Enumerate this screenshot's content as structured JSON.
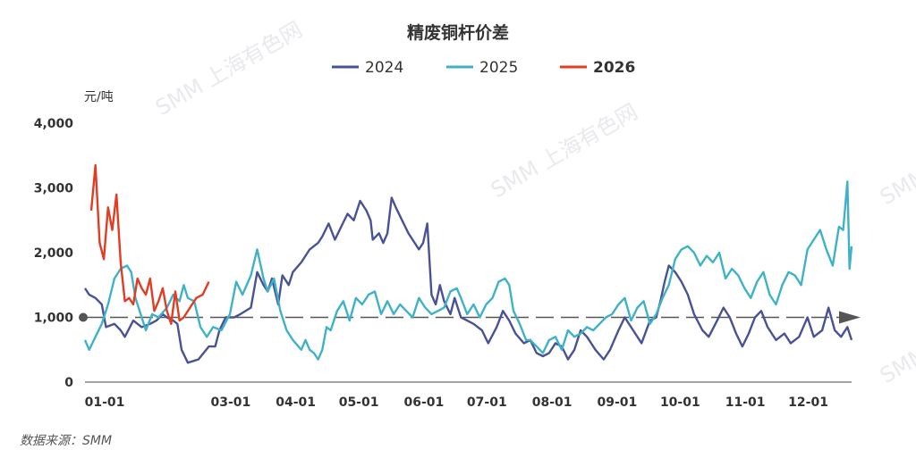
{
  "chart_data": {
    "type": "line",
    "title": "精废铜杆价差",
    "unit_label": "元/吨",
    "source": "数据来源：SMM",
    "watermark": "SMM 上海有色网",
    "ylim": [
      0,
      4000
    ],
    "yticks": [
      "0",
      "1,000",
      "2,000",
      "3,000",
      "4,000"
    ],
    "reference_value": 1000,
    "x_axis": "day of year (1-366)",
    "xticks": [
      {
        "label": "01-01",
        "day": 1
      },
      {
        "label": "03-01",
        "day": 61
      },
      {
        "label": "04-01",
        "day": 92
      },
      {
        "label": "05-01",
        "day": 122
      },
      {
        "label": "06-01",
        "day": 153
      },
      {
        "label": "07-01",
        "day": 183
      },
      {
        "label": "08-01",
        "day": 214
      },
      {
        "label": "09-01",
        "day": 245
      },
      {
        "label": "10-01",
        "day": 275
      },
      {
        "label": "11-01",
        "day": 306
      },
      {
        "label": "12-01",
        "day": 336
      }
    ],
    "series": [
      {
        "name": "2024",
        "color": "#4a5296",
        "bold_legend": false,
        "points": [
          [
            1,
            1450
          ],
          [
            3,
            1350
          ],
          [
            6,
            1300
          ],
          [
            9,
            1200
          ],
          [
            11,
            850
          ],
          [
            15,
            900
          ],
          [
            18,
            800
          ],
          [
            20,
            700
          ],
          [
            24,
            950
          ],
          [
            28,
            850
          ],
          [
            32,
            900
          ],
          [
            35,
            950
          ],
          [
            38,
            1050
          ],
          [
            40,
            1000
          ],
          [
            43,
            950
          ],
          [
            45,
            900
          ],
          [
            47,
            500
          ],
          [
            50,
            300
          ],
          [
            55,
            350
          ],
          [
            60,
            550
          ],
          [
            63,
            550
          ],
          [
            65,
            800
          ],
          [
            68,
            1000
          ],
          [
            72,
            1000
          ],
          [
            75,
            1050
          ],
          [
            80,
            1150
          ],
          [
            83,
            1700
          ],
          [
            86,
            1500
          ],
          [
            88,
            1400
          ],
          [
            90,
            1600
          ],
          [
            93,
            1200
          ],
          [
            95,
            1650
          ],
          [
            98,
            1500
          ],
          [
            100,
            1700
          ],
          [
            104,
            1850
          ],
          [
            108,
            2050
          ],
          [
            112,
            2150
          ],
          [
            114,
            2250
          ],
          [
            117,
            2450
          ],
          [
            120,
            2200
          ],
          [
            123,
            2400
          ],
          [
            126,
            2600
          ],
          [
            129,
            2500
          ],
          [
            132,
            2800
          ],
          [
            135,
            2650
          ],
          [
            137,
            2500
          ],
          [
            138,
            2200
          ],
          [
            141,
            2300
          ],
          [
            143,
            2150
          ],
          [
            145,
            2300
          ],
          [
            147,
            2850
          ],
          [
            149,
            2700
          ],
          [
            152,
            2500
          ],
          [
            155,
            2300
          ],
          [
            158,
            2150
          ],
          [
            160,
            2050
          ],
          [
            162,
            2150
          ],
          [
            164,
            2450
          ],
          [
            166,
            1350
          ],
          [
            168,
            1200
          ],
          [
            170,
            1500
          ],
          [
            172,
            1250
          ],
          [
            175,
            1050
          ],
          [
            177,
            1300
          ],
          [
            180,
            1000
          ],
          [
            183,
            950
          ],
          [
            186,
            900
          ],
          [
            190,
            800
          ],
          [
            193,
            600
          ],
          [
            197,
            850
          ],
          [
            200,
            1100
          ],
          [
            203,
            950
          ],
          [
            206,
            750
          ],
          [
            210,
            600
          ],
          [
            213,
            650
          ],
          [
            216,
            450
          ],
          [
            219,
            400
          ],
          [
            222,
            450
          ],
          [
            225,
            600
          ],
          [
            228,
            550
          ],
          [
            231,
            350
          ],
          [
            234,
            500
          ],
          [
            237,
            800
          ],
          [
            240,
            700
          ],
          [
            244,
            500
          ],
          [
            248,
            350
          ],
          [
            251,
            500
          ],
          [
            255,
            800
          ],
          [
            258,
            1000
          ],
          [
            262,
            800
          ],
          [
            266,
            600
          ],
          [
            270,
            950
          ],
          [
            273,
            1000
          ],
          [
            275,
            1250
          ],
          [
            277,
            1550
          ],
          [
            279,
            1800
          ],
          [
            282,
            1700
          ],
          [
            285,
            1550
          ],
          [
            288,
            1350
          ],
          [
            291,
            1050
          ],
          [
            295,
            800
          ],
          [
            298,
            700
          ],
          [
            302,
            950
          ],
          [
            305,
            1150
          ],
          [
            308,
            1000
          ],
          [
            311,
            750
          ],
          [
            314,
            550
          ],
          [
            317,
            750
          ],
          [
            320,
            1000
          ],
          [
            323,
            1100
          ],
          [
            326,
            850
          ],
          [
            330,
            650
          ],
          [
            334,
            750
          ],
          [
            337,
            600
          ],
          [
            341,
            700
          ],
          [
            345,
            1000
          ],
          [
            348,
            700
          ],
          [
            352,
            800
          ],
          [
            355,
            1150
          ],
          [
            358,
            800
          ],
          [
            361,
            700
          ],
          [
            364,
            850
          ],
          [
            366,
            650
          ]
        ]
      },
      {
        "name": "2025",
        "color": "#3fb2c8",
        "bold_legend": false,
        "points": [
          [
            1,
            650
          ],
          [
            3,
            500
          ],
          [
            6,
            700
          ],
          [
            9,
            900
          ],
          [
            12,
            1200
          ],
          [
            15,
            1600
          ],
          [
            18,
            1750
          ],
          [
            21,
            1800
          ],
          [
            23,
            1700
          ],
          [
            25,
            1300
          ],
          [
            28,
            1000
          ],
          [
            30,
            800
          ],
          [
            33,
            1050
          ],
          [
            36,
            1000
          ],
          [
            40,
            1150
          ],
          [
            43,
            1350
          ],
          [
            46,
            1250
          ],
          [
            48,
            1500
          ],
          [
            50,
            1300
          ],
          [
            53,
            1250
          ],
          [
            56,
            850
          ],
          [
            59,
            700
          ],
          [
            62,
            850
          ],
          [
            66,
            800
          ],
          [
            70,
            1050
          ],
          [
            73,
            1550
          ],
          [
            76,
            1350
          ],
          [
            80,
            1650
          ],
          [
            83,
            2050
          ],
          [
            86,
            1600
          ],
          [
            88,
            1400
          ],
          [
            91,
            1600
          ],
          [
            94,
            1100
          ],
          [
            97,
            800
          ],
          [
            100,
            650
          ],
          [
            104,
            500
          ],
          [
            106,
            650
          ],
          [
            108,
            500
          ],
          [
            110,
            450
          ],
          [
            112,
            350
          ],
          [
            114,
            500
          ],
          [
            116,
            850
          ],
          [
            118,
            800
          ],
          [
            121,
            1100
          ],
          [
            124,
            1250
          ],
          [
            127,
            950
          ],
          [
            130,
            1300
          ],
          [
            133,
            1200
          ],
          [
            136,
            1350
          ],
          [
            139,
            1400
          ],
          [
            142,
            1050
          ],
          [
            145,
            1250
          ],
          [
            148,
            1050
          ],
          [
            151,
            1200
          ],
          [
            154,
            1100
          ],
          [
            157,
            1000
          ],
          [
            160,
            1300
          ],
          [
            163,
            1150
          ],
          [
            166,
            1050
          ],
          [
            169,
            1100
          ],
          [
            172,
            1150
          ],
          [
            175,
            1400
          ],
          [
            178,
            1450
          ],
          [
            180,
            1300
          ],
          [
            183,
            1050
          ],
          [
            186,
            1200
          ],
          [
            189,
            1000
          ],
          [
            192,
            1200
          ],
          [
            195,
            1300
          ],
          [
            198,
            1550
          ],
          [
            201,
            1600
          ],
          [
            203,
            1500
          ],
          [
            205,
            1100
          ],
          [
            208,
            900
          ],
          [
            211,
            650
          ],
          [
            213,
            650
          ],
          [
            216,
            550
          ],
          [
            219,
            450
          ],
          [
            222,
            650
          ],
          [
            225,
            700
          ],
          [
            228,
            500
          ],
          [
            231,
            800
          ],
          [
            234,
            700
          ],
          [
            237,
            750
          ],
          [
            240,
            850
          ],
          [
            243,
            800
          ],
          [
            246,
            900
          ],
          [
            249,
            1000
          ],
          [
            252,
            1050
          ],
          [
            255,
            1200
          ],
          [
            258,
            1300
          ],
          [
            261,
            950
          ],
          [
            264,
            1150
          ],
          [
            267,
            1250
          ],
          [
            270,
            900
          ],
          [
            273,
            1050
          ],
          [
            276,
            1300
          ],
          [
            279,
            1500
          ],
          [
            282,
            1900
          ],
          [
            285,
            2050
          ],
          [
            288,
            2100
          ],
          [
            291,
            2000
          ],
          [
            294,
            1800
          ],
          [
            297,
            1950
          ],
          [
            300,
            1850
          ],
          [
            303,
            2000
          ],
          [
            306,
            1600
          ],
          [
            309,
            1750
          ],
          [
            312,
            1650
          ],
          [
            315,
            1450
          ],
          [
            318,
            1300
          ],
          [
            321,
            1550
          ],
          [
            324,
            1700
          ],
          [
            327,
            1350
          ],
          [
            330,
            1200
          ],
          [
            333,
            1500
          ],
          [
            336,
            1700
          ],
          [
            339,
            1650
          ],
          [
            342,
            1500
          ],
          [
            345,
            2050
          ],
          [
            348,
            2200
          ],
          [
            351,
            2350
          ],
          [
            354,
            2050
          ],
          [
            357,
            1800
          ],
          [
            360,
            2400
          ],
          [
            362,
            2350
          ],
          [
            364,
            3100
          ],
          [
            365,
            1750
          ],
          [
            366,
            2100
          ]
        ]
      },
      {
        "name": "2026",
        "color": "#e03d22",
        "bold_legend": true,
        "points": [
          [
            4,
            2650
          ],
          [
            6,
            3350
          ],
          [
            8,
            2150
          ],
          [
            10,
            1900
          ],
          [
            12,
            2700
          ],
          [
            14,
            2350
          ],
          [
            16,
            2900
          ],
          [
            18,
            1850
          ],
          [
            20,
            1250
          ],
          [
            22,
            1300
          ],
          [
            24,
            1200
          ],
          [
            26,
            1600
          ],
          [
            28,
            1450
          ],
          [
            30,
            1350
          ],
          [
            32,
            1600
          ],
          [
            34,
            1100
          ],
          [
            36,
            1250
          ],
          [
            38,
            1450
          ],
          [
            40,
            1100
          ],
          [
            42,
            900
          ],
          [
            44,
            1400
          ],
          [
            46,
            950
          ],
          [
            48,
            1000
          ],
          [
            51,
            1150
          ],
          [
            54,
            1300
          ],
          [
            57,
            1350
          ],
          [
            60,
            1550
          ]
        ]
      }
    ]
  }
}
